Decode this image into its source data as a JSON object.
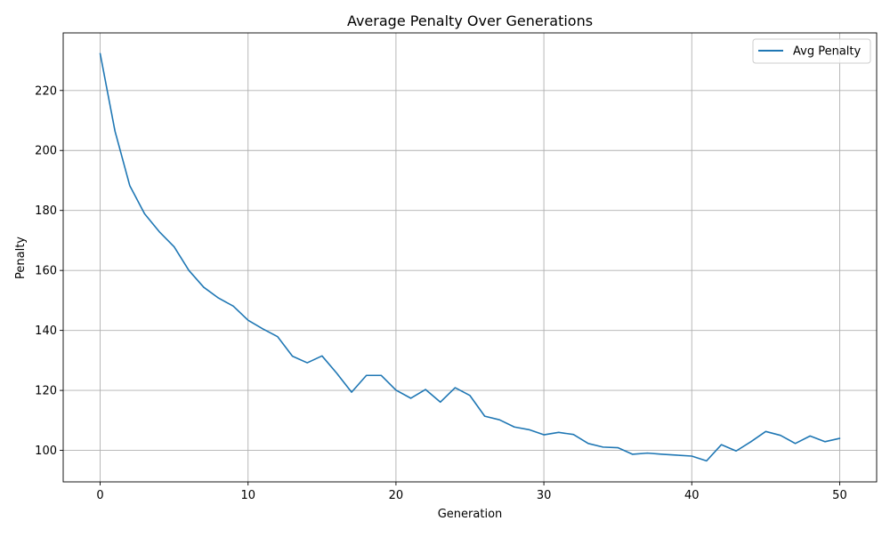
{
  "chart_data": {
    "type": "line",
    "title": "Average Penalty Over Generations",
    "xlabel": "Generation",
    "ylabel": "Penalty",
    "xlim": [
      -2.5,
      52.5
    ],
    "ylim": [
      89.5,
      239.2
    ],
    "xticks": [
      0,
      10,
      20,
      30,
      40,
      50
    ],
    "yticks": [
      100,
      120,
      140,
      160,
      180,
      200,
      220
    ],
    "grid": true,
    "legend_position": "top-right",
    "x": [
      0,
      1,
      2,
      3,
      4,
      5,
      6,
      7,
      8,
      9,
      10,
      11,
      12,
      13,
      14,
      15,
      16,
      17,
      18,
      19,
      20,
      21,
      22,
      23,
      24,
      25,
      26,
      27,
      28,
      29,
      30,
      31,
      32,
      33,
      34,
      35,
      36,
      37,
      38,
      39,
      40,
      41,
      42,
      43,
      44,
      45,
      46,
      47,
      48,
      49,
      50
    ],
    "series": [
      {
        "name": "Avg Penalty",
        "color": "#1f77b4",
        "values": [
          232.3,
          206.5,
          188.3,
          178.9,
          172.9,
          167.9,
          160.0,
          154.4,
          150.8,
          148.1,
          143.4,
          140.5,
          137.9,
          131.4,
          129.2,
          131.5,
          125.7,
          119.4,
          125.0,
          125.0,
          120.1,
          117.4,
          120.3,
          116.1,
          120.9,
          118.3,
          111.4,
          110.2,
          107.8,
          106.9,
          105.2,
          106.0,
          105.3,
          102.3,
          101.1,
          100.9,
          98.7,
          99.1,
          98.7,
          98.4,
          98.1,
          96.5,
          101.9,
          99.8,
          102.9,
          106.3,
          105.0,
          102.3,
          104.8,
          102.9,
          104.0
        ]
      }
    ]
  }
}
